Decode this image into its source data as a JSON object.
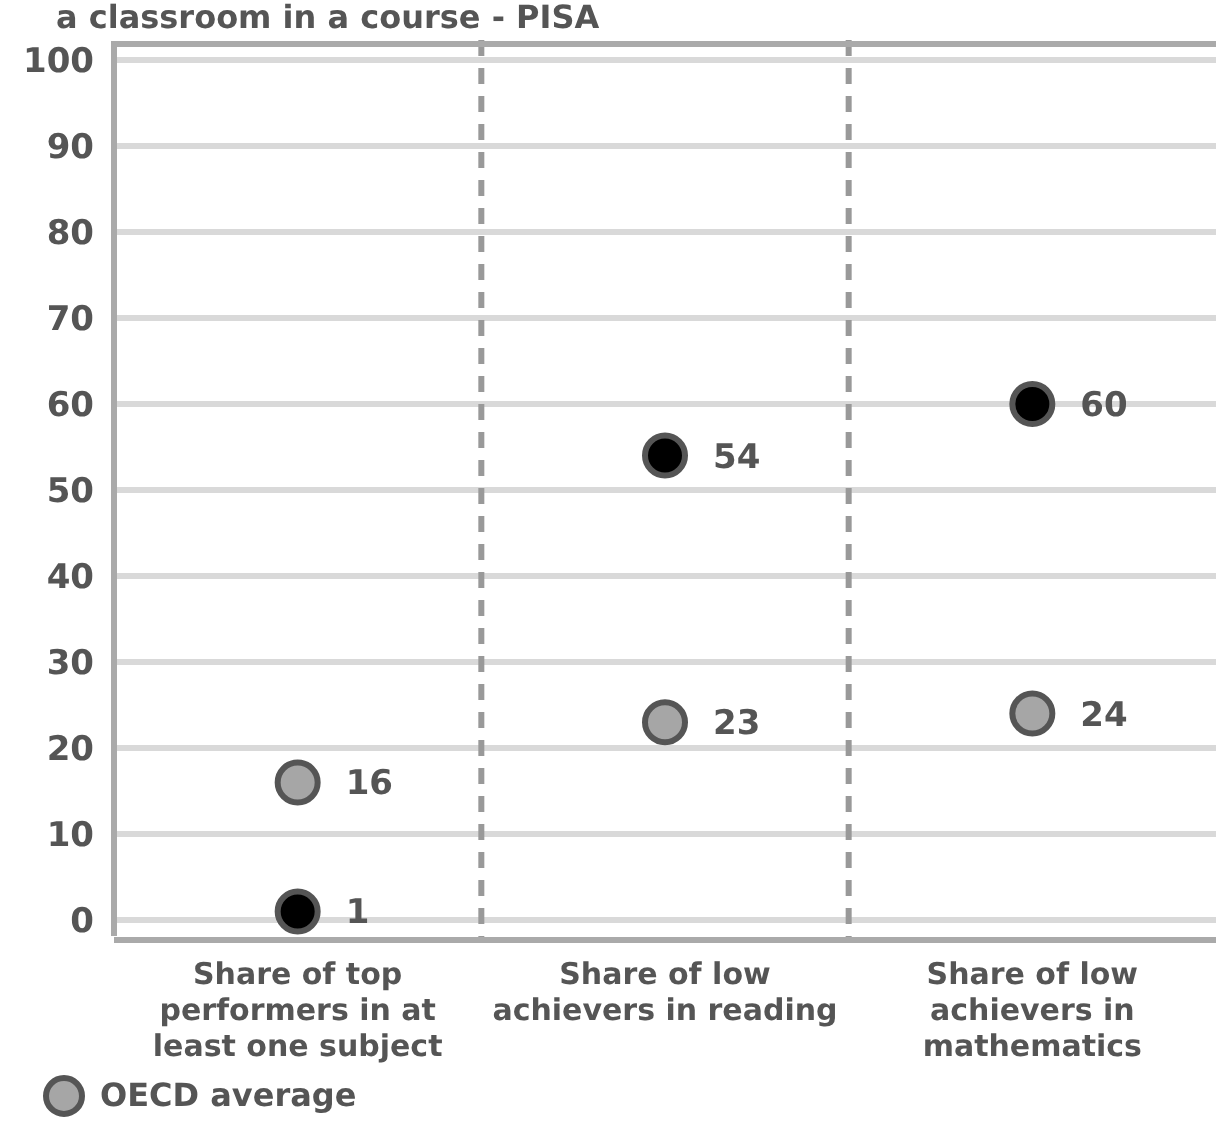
{
  "chart_data": {
    "type": "scatter",
    "title": "a classroom in a course - PISA",
    "categories": [
      "Share of top performers in at least one subject",
      "Share of low achievers in reading",
      "Share of low achievers in mathematics"
    ],
    "series": [
      {
        "color": "#000000",
        "values": [
          1,
          54,
          60
        ]
      },
      {
        "name": "OECD average",
        "color": "#a6a6a6",
        "values": [
          16,
          23,
          24
        ]
      }
    ],
    "ylim": [
      0,
      100
    ],
    "yticks": [
      0,
      10,
      20,
      30,
      40,
      50,
      60,
      70,
      80,
      90,
      100
    ],
    "grid": "y",
    "data_labels": true,
    "legend": "bottom left",
    "marker": "circle"
  }
}
